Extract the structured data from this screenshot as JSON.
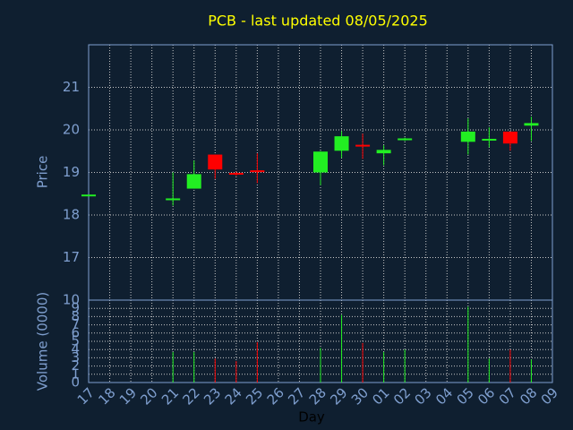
{
  "chart_data": {
    "type": "candlestick",
    "title": "PCB - last updated 08/05/2025",
    "xlabel": "Day",
    "ylabel": "Price",
    "categories": [
      "17",
      "18",
      "19",
      "20",
      "21",
      "22",
      "23",
      "24",
      "25",
      "26",
      "27",
      "28",
      "29",
      "30",
      "01",
      "02",
      "03",
      "04",
      "05",
      "06",
      "07",
      "08",
      "09"
    ],
    "open": [
      18.48,
      null,
      null,
      null,
      18.37,
      18.62,
      19.42,
      18.99,
      19.05,
      null,
      null,
      19.0,
      19.51,
      19.65,
      19.45,
      19.76,
      null,
      null,
      19.72,
      19.77,
      19.96,
      20.1,
      null
    ],
    "high": [
      18.48,
      null,
      null,
      null,
      19.0,
      19.28,
      19.42,
      19.02,
      19.45,
      null,
      null,
      19.5,
      19.97,
      19.91,
      19.64,
      19.82,
      null,
      null,
      20.27,
      20.06,
      19.96,
      20.31,
      null
    ],
    "low": [
      18.48,
      null,
      null,
      null,
      18.22,
      18.62,
      18.85,
      18.92,
      18.75,
      null,
      null,
      18.7,
      19.34,
      19.32,
      19.17,
      19.74,
      null,
      null,
      19.42,
      19.59,
      19.51,
      19.74,
      null
    ],
    "close": [
      18.48,
      null,
      null,
      null,
      18.39,
      18.96,
      19.07,
      18.97,
      19.02,
      null,
      null,
      19.49,
      19.85,
      19.63,
      19.53,
      19.8,
      null,
      null,
      19.96,
      19.79,
      19.68,
      20.16,
      null
    ],
    "ylim": [
      16,
      22
    ],
    "yticks": [
      17,
      18,
      19,
      20,
      21
    ],
    "up_color": "#22ee22",
    "down_color": "#ff0000",
    "grid": true,
    "volume": {
      "ylabel": "Volume (0000)",
      "values": [
        null,
        null,
        null,
        null,
        3.7,
        3.7,
        2.9,
        2.6,
        4.9,
        null,
        null,
        4.2,
        8.2,
        4.8,
        3.7,
        4.0,
        null,
        null,
        9.2,
        2.9,
        4.0,
        2.8,
        null
      ],
      "ylim": [
        0,
        10
      ],
      "yticks": [
        0,
        1,
        2,
        3,
        4,
        5,
        6,
        7,
        8,
        9,
        10
      ]
    }
  }
}
